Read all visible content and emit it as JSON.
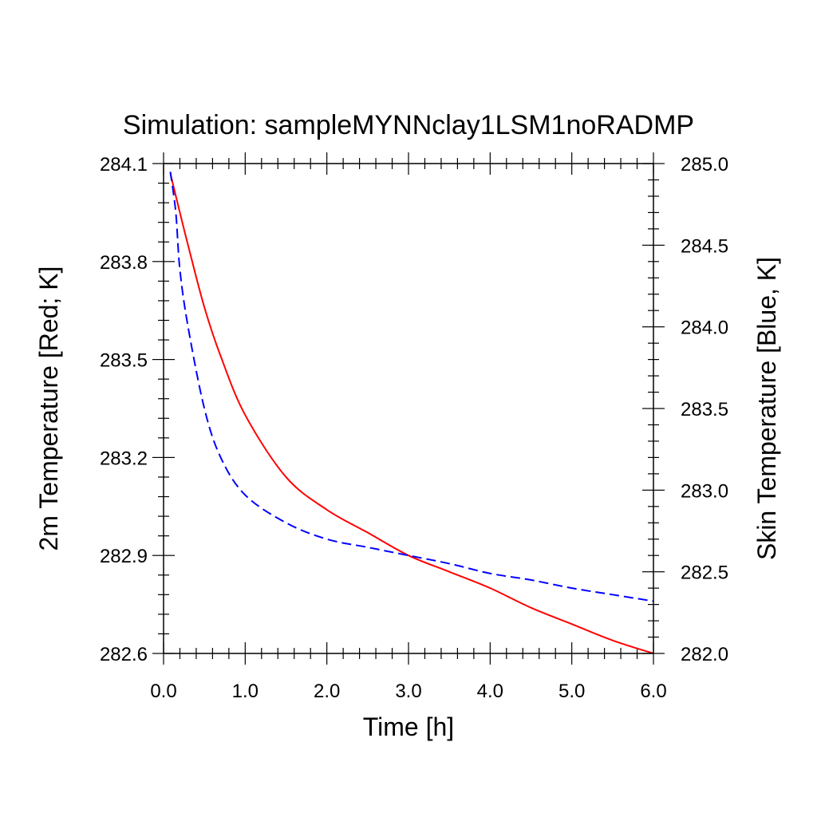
{
  "chart_data": {
    "type": "line",
    "title": "Simulation: sampleMYNNclay1LSM1noRADMP",
    "xlabel": "Time [h]",
    "ylabel_left": "2m Temperature [Red; K]",
    "ylabel_right": "Skin Temperature [Blue, K]",
    "xlim": [
      0.0,
      6.0
    ],
    "ylim_left": [
      282.6,
      284.1
    ],
    "ylim_right": [
      282.0,
      285.0
    ],
    "x_ticks": [
      0.0,
      1.0,
      2.0,
      3.0,
      4.0,
      5.0,
      6.0
    ],
    "x_tick_labels": [
      "0.0",
      "1.0",
      "2.0",
      "3.0",
      "4.0",
      "5.0",
      "6.0"
    ],
    "y_left_ticks": [
      282.6,
      282.9,
      283.2,
      283.5,
      283.8,
      284.1
    ],
    "y_left_tick_labels": [
      "282.6",
      "282.9",
      "283.2",
      "283.5",
      "283.8",
      "284.1"
    ],
    "y_right_ticks": [
      282.0,
      282.5,
      283.0,
      283.5,
      284.0,
      284.5,
      285.0
    ],
    "y_right_tick_labels": [
      "282.0",
      "282.5",
      "283.0",
      "283.5",
      "284.0",
      "284.5",
      "285.0"
    ],
    "grid": false,
    "series": [
      {
        "axis": "left",
        "color": "#ff0000",
        "line_style": "solid",
        "x": [
          0.083,
          0.2,
          0.3,
          0.5,
          0.7,
          1.0,
          1.5,
          2.0,
          2.5,
          3.0,
          3.5,
          4.0,
          4.5,
          5.0,
          5.5,
          6.0
        ],
        "y": [
          284.07,
          283.95,
          283.85,
          283.66,
          283.51,
          283.33,
          283.14,
          283.04,
          282.97,
          282.9,
          282.85,
          282.8,
          282.74,
          282.69,
          282.64,
          282.6
        ]
      },
      {
        "axis": "right",
        "color": "#0000ff",
        "line_style": "dashed",
        "x": [
          0.083,
          0.15,
          0.2,
          0.3,
          0.5,
          0.7,
          1.0,
          1.5,
          2.0,
          2.5,
          3.0,
          3.5,
          4.0,
          4.5,
          5.0,
          5.5,
          6.0
        ],
        "y": [
          284.95,
          284.7,
          284.35,
          284.0,
          283.5,
          283.2,
          282.97,
          282.8,
          282.7,
          282.65,
          282.6,
          282.55,
          282.49,
          282.45,
          282.4,
          282.36,
          282.32
        ]
      }
    ]
  }
}
